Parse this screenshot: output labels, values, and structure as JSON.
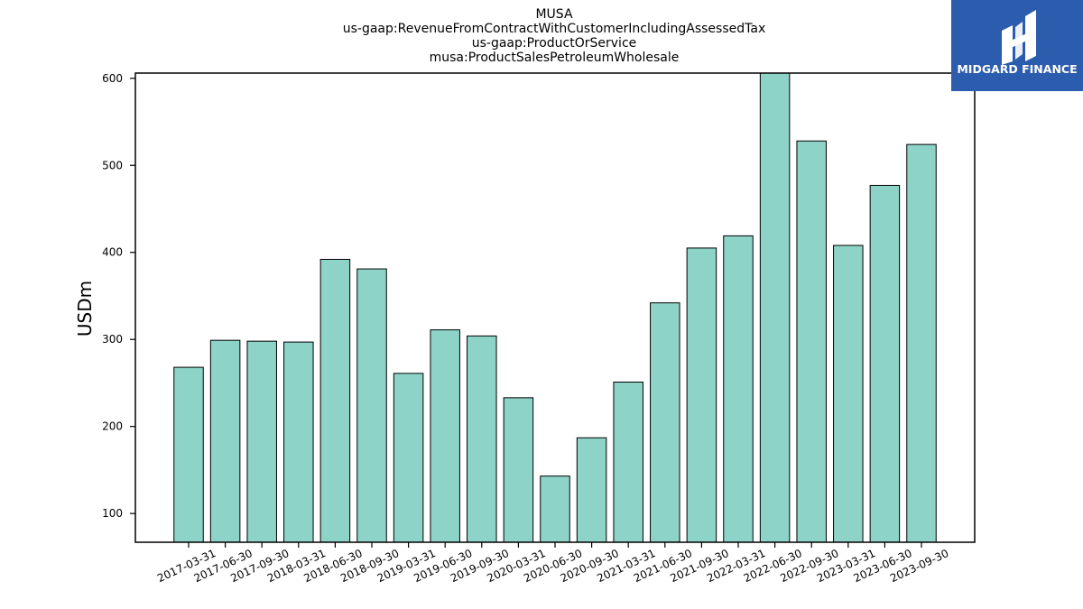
{
  "brand": {
    "name": "MIDGARD FINANCE",
    "color": "#2b5cad"
  },
  "chart_data": {
    "type": "bar",
    "title_lines": [
      "MUSA",
      "us-gaap:RevenueFromContractWithCustomerIncludingAssessedTax",
      "us-gaap:ProductOrService",
      "musa:ProductSalesPetroleumWholesale"
    ],
    "xlabel": "",
    "ylabel": "USDm",
    "categories": [
      "2017-03-31",
      "2017-06-30",
      "2017-09-30",
      "2018-03-31",
      "2018-06-30",
      "2018-09-30",
      "2019-03-31",
      "2019-06-30",
      "2019-09-30",
      "2020-03-31",
      "2020-06-30",
      "2020-09-30",
      "2021-03-31",
      "2021-06-30",
      "2021-09-30",
      "2022-03-31",
      "2022-06-30",
      "2022-09-30",
      "2023-03-31",
      "2023-06-30",
      "2023-09-30"
    ],
    "values": [
      268,
      299,
      298,
      297,
      392,
      381,
      261,
      311,
      304,
      233,
      143,
      187,
      251,
      342,
      405,
      419,
      606,
      528,
      408,
      477,
      524
    ],
    "ylim": [
      67,
      606
    ],
    "yticks": [
      100,
      200,
      300,
      400,
      500,
      600
    ],
    "bar_color": "#8dd3c7",
    "edge_color": "#000000",
    "grid": false,
    "legend": "none"
  }
}
